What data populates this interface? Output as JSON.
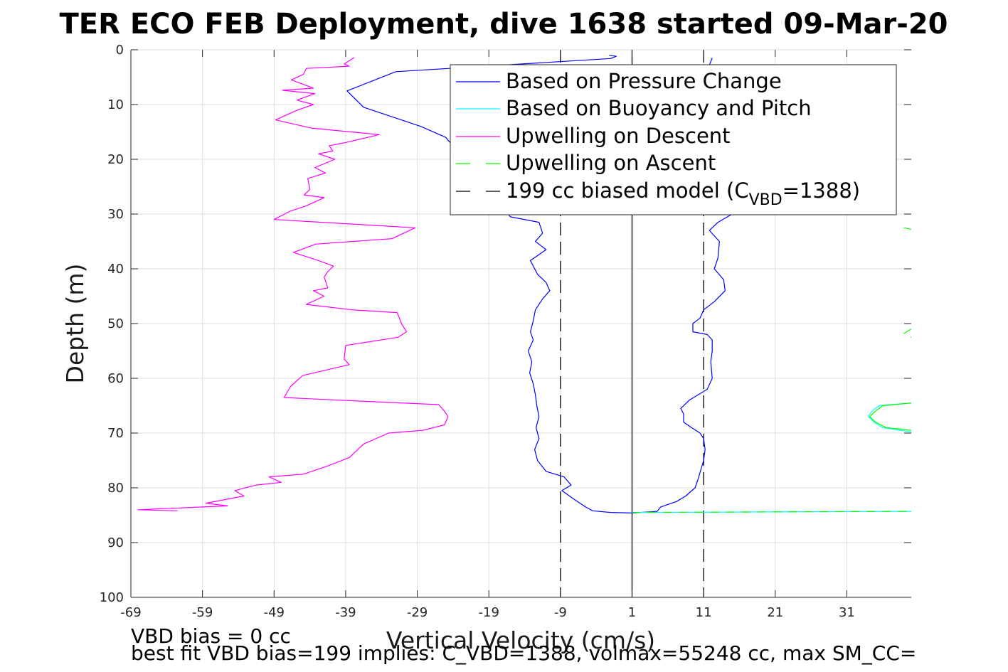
{
  "chart_data": {
    "type": "line",
    "title": "TER ECO FEB Deployment, dive 1638 started 09-Mar-20",
    "xlabel": "Vertical Velocity (cm/s)",
    "ylabel": "Depth (m)",
    "xlim": [
      -69,
      40
    ],
    "ylim": [
      0,
      100
    ],
    "y_reversed": true,
    "grid": true,
    "legend_placement": "top-right",
    "x_ticks": [
      -69,
      -59,
      -49,
      -39,
      -29,
      -19,
      -9,
      1,
      11,
      21,
      31
    ],
    "y_ticks": [
      0,
      10,
      20,
      30,
      40,
      50,
      60,
      70,
      80,
      90,
      100
    ],
    "reference_lines": [
      {
        "x": 1,
        "style": "solid",
        "color": "#000000"
      },
      {
        "x": -9,
        "style": "dashed",
        "color": "#000000"
      },
      {
        "x": 11,
        "style": "dashed",
        "color": "#000000"
      }
    ],
    "legend": [
      {
        "label": "Based on Pressure Change",
        "color": "#0000ff",
        "style": "solid"
      },
      {
        "label": "Based on Buoyancy and Pitch",
        "color": "#00ffff",
        "style": "solid"
      },
      {
        "label": "Upwelling on Descent",
        "color": "#ff00ff",
        "style": "solid"
      },
      {
        "label": "Upwelling on Ascent",
        "color": "#00ff00",
        "style": "dashed"
      },
      {
        "label": "199 cc biased model (C",
        "sub": "VBD",
        "suffix": "=1388)",
        "color": "#000000",
        "style": "dashed"
      }
    ],
    "series": [
      {
        "name": "Based on Pressure Change",
        "color": "#0000ff",
        "dash": "",
        "points": [
          [
            -2.2,
            1.0
          ],
          [
            -1.2,
            1.2
          ],
          [
            -2,
            1.6
          ],
          [
            -32,
            4.0
          ],
          [
            -38.8,
            7.5
          ],
          [
            -36.5,
            10.5
          ],
          [
            -28.5,
            14.0
          ],
          [
            -25,
            16.0
          ],
          [
            -16,
            30.5
          ],
          [
            -12,
            31.5
          ],
          [
            -11.5,
            33.5
          ],
          [
            -12.5,
            35.0
          ],
          [
            -11,
            36.5
          ],
          [
            -13.2,
            38.5
          ],
          [
            -12.2,
            41.0
          ],
          [
            -11,
            42.5
          ],
          [
            -10.5,
            44.0
          ],
          [
            -11.5,
            45.5
          ],
          [
            -12.5,
            47.5
          ],
          [
            -12.8,
            49.5
          ],
          [
            -13.2,
            51.5
          ],
          [
            -12.8,
            53.0
          ],
          [
            -13.5,
            55.0
          ],
          [
            -13,
            57.0
          ],
          [
            -13.3,
            59.0
          ],
          [
            -12.8,
            61.0
          ],
          [
            -12.5,
            63.0
          ],
          [
            -12.3,
            65.0
          ],
          [
            -12,
            67.0
          ],
          [
            -12.4,
            69.0
          ],
          [
            -12,
            71.0
          ],
          [
            -12.6,
            73.0
          ],
          [
            -12.2,
            75.0
          ],
          [
            -11,
            77.0
          ],
          [
            -8.5,
            78.0
          ],
          [
            -7.5,
            79.5
          ],
          [
            -8.8,
            80.5
          ],
          [
            -7.2,
            82.0
          ],
          [
            -5.5,
            83.5
          ],
          [
            -4.5,
            84.2
          ],
          [
            -2,
            84.5
          ],
          [
            1,
            84.6
          ],
          [
            4.5,
            84.3
          ],
          [
            5,
            83.5
          ],
          [
            7.2,
            82.5
          ],
          [
            8.5,
            81.5
          ],
          [
            9.8,
            80.0
          ],
          [
            10.2,
            78.5
          ],
          [
            11,
            75.0
          ],
          [
            11.2,
            73.0
          ],
          [
            11,
            71.0
          ],
          [
            10.5,
            70.0
          ],
          [
            9.3,
            69.0
          ],
          [
            8.2,
            68.0
          ],
          [
            8.2,
            66.5
          ],
          [
            7.8,
            65.5
          ],
          [
            9,
            64.0
          ],
          [
            11.5,
            62.0
          ],
          [
            12.2,
            60.0
          ],
          [
            12,
            57.0
          ],
          [
            12.2,
            55.0
          ],
          [
            12.2,
            53.0
          ],
          [
            11.5,
            52.0
          ],
          [
            9.5,
            51.5
          ],
          [
            9.5,
            50.0
          ],
          [
            10.5,
            49.0
          ],
          [
            11,
            47.5
          ],
          [
            12.5,
            46.0
          ],
          [
            14,
            44.0
          ],
          [
            13.8,
            42.0
          ],
          [
            12.5,
            40.0
          ],
          [
            13,
            38.0
          ],
          [
            13.2,
            35.0
          ],
          [
            11.8,
            33.0
          ],
          [
            13,
            31.5
          ],
          [
            15,
            30.0
          ]
        ]
      },
      {
        "name": "Based on Pressure Change",
        "color": "#0000ff",
        "dash": "",
        "points": [
          [
            12.2,
            1.5
          ],
          [
            11.8,
            2.8
          ]
        ]
      },
      {
        "name": "Based on Buoyancy and Pitch",
        "color": "#00ffff",
        "dash": "",
        "points": [
          [
            40,
            64.5
          ],
          [
            35.5,
            65.0
          ],
          [
            34.5,
            66.0
          ],
          [
            34,
            67.0
          ],
          [
            34.8,
            68.0
          ],
          [
            36,
            69.0
          ],
          [
            40,
            69.8
          ]
        ]
      },
      {
        "name": "Based on Buoyancy and Pitch",
        "color": "#00ffff",
        "dash": "",
        "points": [
          [
            1,
            84.5
          ],
          [
            40,
            84.3
          ]
        ]
      },
      {
        "name": "Upwelling on Descent",
        "color": "#ff00ff",
        "dash": "",
        "points": [
          [
            -37.8,
            1.4
          ],
          [
            -39.2,
            2.6
          ],
          [
            -38.5,
            3.0
          ],
          [
            -44.5,
            3.4
          ],
          [
            -44.9,
            4.5
          ],
          [
            -46.6,
            5.5
          ],
          [
            -43.5,
            7.0
          ],
          [
            -47.8,
            7.4
          ],
          [
            -43.3,
            8.0
          ],
          [
            -45.8,
            9.2
          ],
          [
            -43.5,
            10.0
          ],
          [
            -45.7,
            11.0
          ],
          [
            -48.8,
            12.8
          ],
          [
            -43.8,
            14.3
          ],
          [
            -34.3,
            15.5
          ],
          [
            -39.2,
            17.0
          ],
          [
            -41.3,
            17.5
          ],
          [
            -40.8,
            18.5
          ],
          [
            -42.8,
            19.0
          ],
          [
            -40.5,
            20.0
          ],
          [
            -43.3,
            21.5
          ],
          [
            -41.8,
            22.5
          ],
          [
            -44.3,
            23.5
          ],
          [
            -44.0,
            25.5
          ],
          [
            -44.8,
            26.5
          ],
          [
            -42.0,
            27.0
          ],
          [
            -44.5,
            28.5
          ],
          [
            -46.8,
            29.5
          ],
          [
            -49,
            31.0
          ],
          [
            -38.5,
            31.8
          ],
          [
            -29.3,
            32.5
          ],
          [
            -32.5,
            34.5
          ],
          [
            -43.2,
            35.5
          ],
          [
            -46.3,
            37.0
          ],
          [
            -42.8,
            38.5
          ],
          [
            -40.7,
            39.5
          ],
          [
            -41.5,
            40.5
          ],
          [
            -42.0,
            41.5
          ],
          [
            -41.5,
            43.5
          ],
          [
            -43.5,
            44.0
          ],
          [
            -42.0,
            45.0
          ],
          [
            -44.5,
            46.5
          ],
          [
            -38.0,
            47.5
          ],
          [
            -31.8,
            48.0
          ],
          [
            -31.2,
            50.0
          ],
          [
            -30.5,
            51.5
          ],
          [
            -31.7,
            52.5
          ],
          [
            -39.0,
            54.0
          ],
          [
            -39.2,
            56.5
          ],
          [
            -38.5,
            57.5
          ],
          [
            -45.0,
            59.5
          ],
          [
            -46.7,
            61.5
          ],
          [
            -47.6,
            63.5
          ],
          [
            -43.0,
            63.8
          ],
          [
            -26.0,
            64.8
          ],
          [
            -25.2,
            66.0
          ],
          [
            -24.7,
            67.0
          ],
          [
            -25.2,
            68.5
          ],
          [
            -28.2,
            69.5
          ],
          [
            -33.0,
            70.0
          ],
          [
            -36.5,
            72.0
          ],
          [
            -38.5,
            74.5
          ],
          [
            -41.5,
            76.0
          ],
          [
            -44.9,
            77.5
          ],
          [
            -49.7,
            78.0
          ],
          [
            -48.0,
            79.0
          ],
          [
            -51.5,
            79.5
          ],
          [
            -54.5,
            80.5
          ],
          [
            -53.2,
            81.5
          ],
          [
            -58.5,
            82.8
          ],
          [
            -55.5,
            83.3
          ],
          [
            -68,
            84.0
          ],
          [
            -62.5,
            84.2
          ]
        ]
      },
      {
        "name": "Upwelling on Ascent",
        "color": "#00ff00",
        "dash": "12,10",
        "points": [
          [
            39,
            32.5
          ],
          [
            40,
            32.8
          ]
        ]
      },
      {
        "name": "Upwelling on Ascent",
        "color": "#00ff00",
        "dash": "12,10",
        "points": [
          [
            40,
            51.0
          ],
          [
            39,
            51.8
          ],
          [
            40,
            52.5
          ]
        ]
      },
      {
        "name": "Upwelling on Ascent",
        "color": "#00ff00",
        "dash": "",
        "points": [
          [
            40,
            64.5
          ],
          [
            36,
            65.0
          ],
          [
            35,
            66.0
          ],
          [
            34.2,
            67.0
          ],
          [
            35,
            68.0
          ],
          [
            36.5,
            69.0
          ],
          [
            40,
            69.5
          ]
        ]
      },
      {
        "name": "Upwelling on Ascent",
        "color": "#00ff00",
        "dash": "12,10",
        "points": [
          [
            1,
            84.5
          ],
          [
            40,
            84.3
          ]
        ]
      }
    ],
    "annotations": [
      "VBD bias = 0 cc",
      "best fit VBD bias=199 implies: C_VBD=1388, volmax=55248 cc, max SM_CC="
    ]
  }
}
